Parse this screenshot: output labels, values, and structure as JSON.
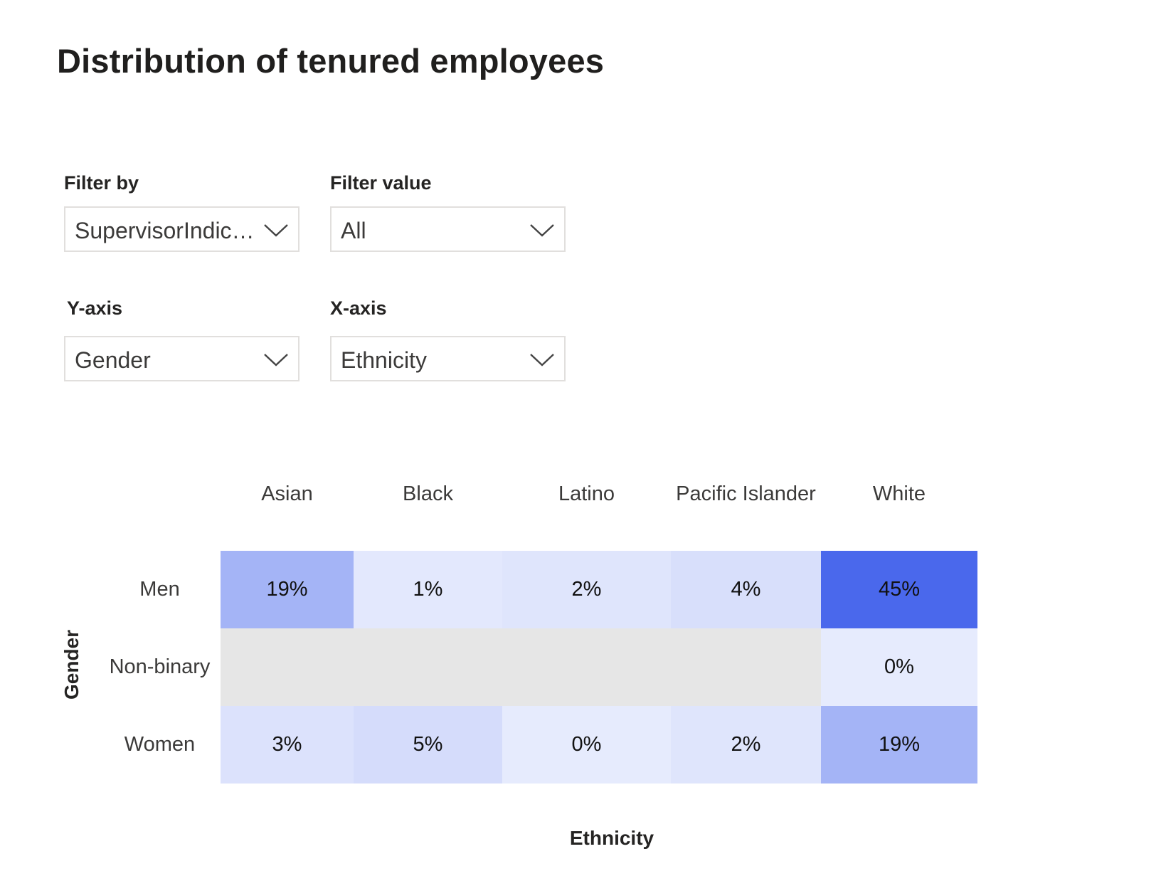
{
  "page": {
    "title": "Distribution of tenured employees"
  },
  "filters": {
    "filter_by": {
      "label": "Filter by",
      "value": "SupervisorIndica..."
    },
    "filter_value": {
      "label": "Filter value",
      "value": "All"
    },
    "y_axis": {
      "label": "Y-axis",
      "value": "Gender"
    },
    "x_axis": {
      "label": "X-axis",
      "value": "Ethnicity"
    },
    "chevron_icon": "chevron-down-icon"
  },
  "chart_data": {
    "type": "heatmap",
    "xlabel": "Ethnicity",
    "ylabel": "Gender",
    "columns": [
      "Asian",
      "Black",
      "Latino",
      "Pacific Islander",
      "White"
    ],
    "rows": [
      "Men",
      "Non-binary",
      "Women"
    ],
    "values": [
      [
        19,
        1,
        2,
        4,
        45
      ],
      [
        null,
        null,
        null,
        null,
        0
      ],
      [
        3,
        5,
        0,
        2,
        19
      ]
    ],
    "labels": [
      [
        "19%",
        "1%",
        "2%",
        "4%",
        "45%"
      ],
      [
        "",
        "",
        "",
        "",
        "0%"
      ],
      [
        "3%",
        "5%",
        "0%",
        "2%",
        "19%"
      ]
    ],
    "colors": {
      "min": "#e6ebfd",
      "max": "#4a68ec",
      "empty": "#e6e6e6",
      "text": "#111111"
    }
  }
}
